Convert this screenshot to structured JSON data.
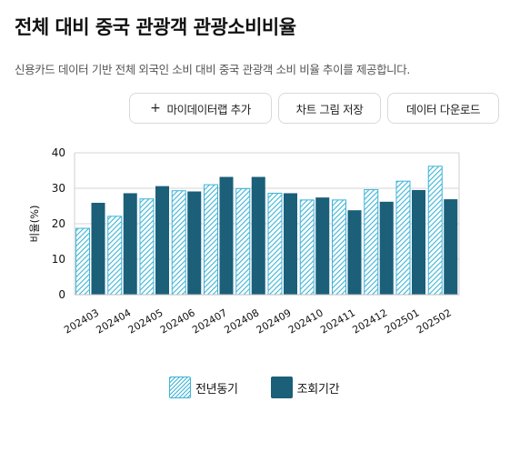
{
  "title": "전체 대비 중국 관광객 관광소비비율",
  "subtitle": "신용카드 데이터 기반 전체 외국인 소비 대비 중국 관광객 소비 비율 추이를 제공합니다.",
  "buttons": {
    "add_label": "마이데이터랩 추가",
    "add_icon": "+",
    "save_label": "차트 그림 저장",
    "download_label": "데이터 다운로드"
  },
  "colors": {
    "previous": "#3cb4d8",
    "current": "#1b5f79"
  },
  "chart_data": {
    "type": "bar",
    "categories": [
      "202403",
      "202404",
      "202405",
      "202406",
      "202407",
      "202408",
      "202409",
      "202410",
      "202411",
      "202412",
      "202501",
      "202502"
    ],
    "series": [
      {
        "name": "전년동기",
        "values": [
          18.7,
          22.1,
          27.0,
          29.3,
          31.0,
          29.9,
          28.6,
          26.7,
          26.7,
          29.6,
          32.0,
          36.2
        ]
      },
      {
        "name": "조회기간",
        "values": [
          25.9,
          28.6,
          30.6,
          29.1,
          33.2,
          33.2,
          28.6,
          27.4,
          23.8,
          26.2,
          29.5,
          26.9
        ]
      }
    ],
    "ylabel": "비율(%)",
    "xlabel": "",
    "ylim": [
      0,
      40
    ],
    "yticks": [
      0,
      10,
      20,
      30,
      40
    ],
    "grid": true,
    "legend": "bottom-center"
  }
}
